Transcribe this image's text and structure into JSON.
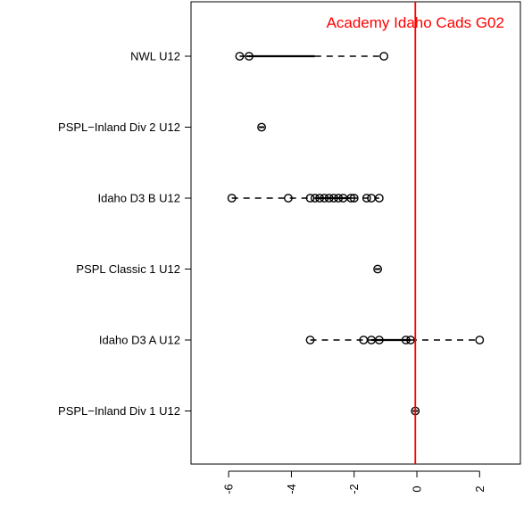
{
  "chart_data": {
    "type": "boxplot",
    "orientation": "horizontal",
    "title": "",
    "xlabel": "",
    "ylabel": "",
    "xlim": [
      -7.2,
      3.3
    ],
    "x_ticks": [
      -6,
      -4,
      -2,
      0,
      2
    ],
    "grid": false,
    "reference_line": {
      "x": -0.05,
      "label": "Academy Idaho Cads G02",
      "color": "#ff0000"
    },
    "groups": [
      {
        "label": "NWL U12",
        "box": {
          "q1": -5.35,
          "median": -5.35,
          "q3": -3.25
        },
        "whiskers": [
          -5.65,
          -1.05
        ],
        "points": [
          -5.65,
          -5.35,
          -1.05
        ]
      },
      {
        "label": "PSPL−Inland Div 2 U12",
        "box": {
          "q1": -4.95,
          "median": -4.95,
          "q3": -4.95
        },
        "whiskers": [
          -4.95,
          -4.95
        ],
        "points": [
          -4.95
        ]
      },
      {
        "label": "Idaho D3 B U12",
        "box": {
          "q1": -3.2,
          "median": -3.0,
          "q3": -2.1
        },
        "whiskers": [
          -5.9,
          -1.2
        ],
        "points": [
          -5.9,
          -4.1,
          -3.4,
          -3.25,
          -3.1,
          -2.95,
          -2.8,
          -2.65,
          -2.5,
          -2.35,
          -2.1,
          -2.0,
          -1.6,
          -1.45,
          -1.2
        ]
      },
      {
        "label": "PSPL Classic 1 U12",
        "box": {
          "q1": -1.25,
          "median": -1.25,
          "q3": -1.25
        },
        "whiskers": [
          -1.25,
          -1.25
        ],
        "points": [
          -1.25
        ]
      },
      {
        "label": "Idaho D3 A U12",
        "box": {
          "q1": -1.45,
          "median": -1.2,
          "q3": -0.2
        },
        "whiskers": [
          -3.4,
          2.0
        ],
        "points": [
          -3.4,
          -1.7,
          -1.45,
          -1.2,
          -0.35,
          -0.2,
          2.0
        ]
      },
      {
        "label": "PSPL−Inland Div 1 U12",
        "box": {
          "q1": -0.05,
          "median": -0.05,
          "q3": -0.05
        },
        "whiskers": [
          -0.05,
          -0.05
        ],
        "points": [
          -0.05
        ]
      }
    ]
  }
}
